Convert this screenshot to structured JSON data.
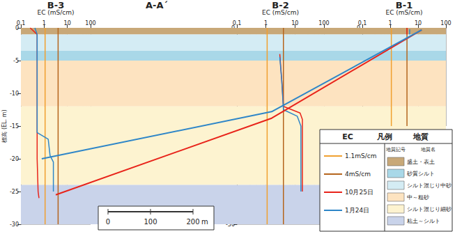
{
  "chart_data": {
    "type": "line",
    "title": "A-A´",
    "legend": "lower right",
    "grid": true,
    "section": {
      "xlim": [
        0,
        1000
      ],
      "ylim": [
        -30,
        0
      ],
      "layers": [
        {
          "name": "盛土・表土",
          "top": 0,
          "bottom": -1,
          "color": "#c8a878"
        },
        {
          "name": "砂質シルト",
          "top": -3.5,
          "bottom": -5,
          "color": "#a9d8e8"
        },
        {
          "name": "シルト混じり中砂",
          "top": -1,
          "bottom": -3.5,
          "color": "#d4ecf4"
        },
        {
          "name": "中～粗砂",
          "top": -5,
          "bottom": -12,
          "color": "#fde3c0"
        },
        {
          "name": "シルト混じり細砂",
          "top": -12,
          "bottom": -24,
          "color": "#fdf3d0"
        },
        {
          "name": "粘土～シルト",
          "top": -24,
          "bottom": -30,
          "color": "#c9d3ea"
        }
      ],
      "series": [
        {
          "name": "10月25日",
          "color": "#e8231a",
          "x": [
            82,
            590,
            943
          ],
          "values": [
            -25.5,
            -13.8,
            -0.3
          ]
        },
        {
          "name": "1月24日",
          "color": "#2e86c8",
          "x": [
            49,
            590,
            943
          ],
          "values": [
            -20,
            -12.8,
            -0.3
          ]
        }
      ],
      "scale_bar": {
        "ticks": [
          0,
          100,
          200
        ],
        "unit": "m"
      }
    },
    "thresholds": [
      {
        "name": "1.1mS/cm",
        "value": 1.1,
        "color": "#f0a030"
      },
      {
        "name": "4mS/cm",
        "value": 4,
        "color": "#b5651d"
      }
    ],
    "legend_box": {
      "ec_title": "EC",
      "title": "凡例",
      "geology_title": "地質",
      "symbol_header": "地質記号",
      "name_header": "地質名"
    },
    "boreholes": [
      {
        "name": "B-3",
        "xlabel": "EC (mS/cm)",
        "ylabel": "標高 (EL. m)",
        "log": "x",
        "xlim": [
          0.1,
          100
        ],
        "xticks": [
          0.1,
          1,
          10,
          100
        ],
        "ylim": [
          -30,
          0
        ],
        "yticks": [
          0,
          -5,
          -10,
          -15,
          -20,
          -25,
          -30
        ],
        "series": [
          {
            "name": "10月25日",
            "color": "#e8231a",
            "x": [
              0.25,
              0.5,
              0.5,
              0.55,
              0.6
            ],
            "values": [
              0,
              -1,
              -20,
              -25,
              -26
            ]
          },
          {
            "name": "1月24日",
            "color": "#2e86c8",
            "x": [
              0.4,
              0.5,
              0.5,
              1.5,
              1.8,
              2.5,
              2.5
            ],
            "values": [
              0,
              -1,
              -16,
              -17,
              -19.5,
              -20.5,
              -25
            ]
          }
        ]
      },
      {
        "name": "B-2",
        "xlabel": "EC (mS/cm)",
        "ylabel": "標高 (EL. m)",
        "log": "x",
        "xlim": [
          0.1,
          100
        ],
        "xticks": [
          0.1,
          1,
          10,
          100
        ],
        "ylim": [
          -30,
          0
        ],
        "yticks": [
          0,
          -5,
          -10,
          -15,
          -20,
          -25,
          -30
        ],
        "series": [
          {
            "name": "10月25日",
            "color": "#e8231a",
            "x": [
              3,
              3.5,
              4,
              15,
              18,
              18
            ],
            "values": [
              -4,
              -8,
              -12,
              -13,
              -14,
              -25
            ]
          },
          {
            "name": "1月24日",
            "color": "#2e86c8",
            "x": [
              3,
              3.5,
              4,
              12,
              16,
              16
            ],
            "values": [
              -4.5,
              -8,
              -12.5,
              -13.5,
              -15,
              -25
            ]
          }
        ]
      },
      {
        "name": "B-1",
        "xlabel": "EC (mS/cm)",
        "ylabel": "標高 (EL. m)",
        "log": "x",
        "xlim": [
          0.1,
          100
        ],
        "xticks": [
          0.1,
          1,
          10,
          100
        ],
        "ylim": [
          -15,
          0
        ],
        "yticks": [
          0,
          -5,
          -10,
          -15
        ],
        "series": [
          {
            "name": "10月25日",
            "color": "#e8231a",
            "x": [
              4,
              4
            ],
            "values": [
              0,
              -1
            ]
          },
          {
            "name": "1月24日",
            "color": "#2e86c8",
            "x": [
              5,
              5
            ],
            "values": [
              -0.2,
              -1
            ]
          }
        ]
      }
    ]
  }
}
